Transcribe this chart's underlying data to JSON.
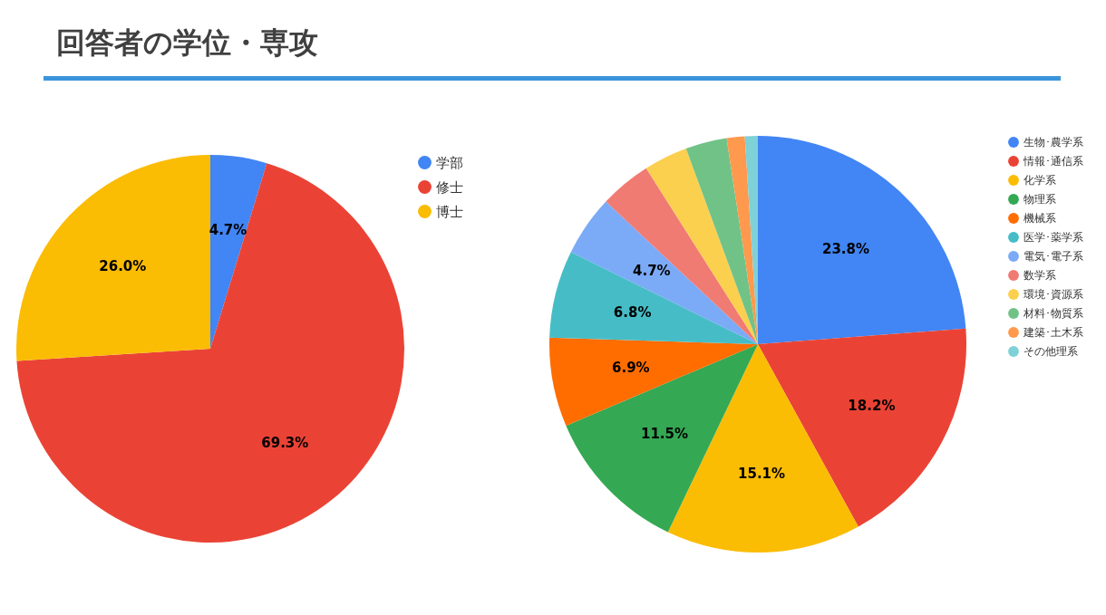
{
  "chart_data": [
    {
      "type": "pie",
      "title": "回答者の学位・専攻",
      "categories": [
        "学部",
        "修士",
        "博士"
      ],
      "values": [
        4.7,
        69.3,
        26.0
      ],
      "colors": [
        "#4285f4",
        "#ea4335",
        "#fbbc04"
      ],
      "value_labels": [
        "4.7%",
        "69.3%",
        "26.0%"
      ],
      "legend": "right"
    },
    {
      "type": "pie",
      "categories": [
        "生物･農学系",
        "情報･通信系",
        "化学系",
        "物理系",
        "機械系",
        "医学･薬学系",
        "電気･電子系",
        "数学系",
        "環境･資源系",
        "材料･物質系",
        "建築･土木系",
        "その他理系"
      ],
      "values": [
        23.8,
        18.2,
        15.1,
        11.5,
        6.9,
        6.8,
        4.7,
        4.0,
        3.4,
        3.2,
        1.4,
        1.0
      ],
      "colors": [
        "#4285f4",
        "#ea4335",
        "#fbbc04",
        "#34a853",
        "#ff6d01",
        "#46bdc6",
        "#7baaf7",
        "#f07b72",
        "#fcd04f",
        "#71c287",
        "#ff994d",
        "#7ed1d7"
      ],
      "value_labels": [
        "23.8%",
        "18.2%",
        "15.1%",
        "11.5%",
        "6.9%",
        "6.8%",
        "4.7%",
        null,
        null,
        null,
        null,
        null
      ],
      "legend": "right"
    }
  ]
}
